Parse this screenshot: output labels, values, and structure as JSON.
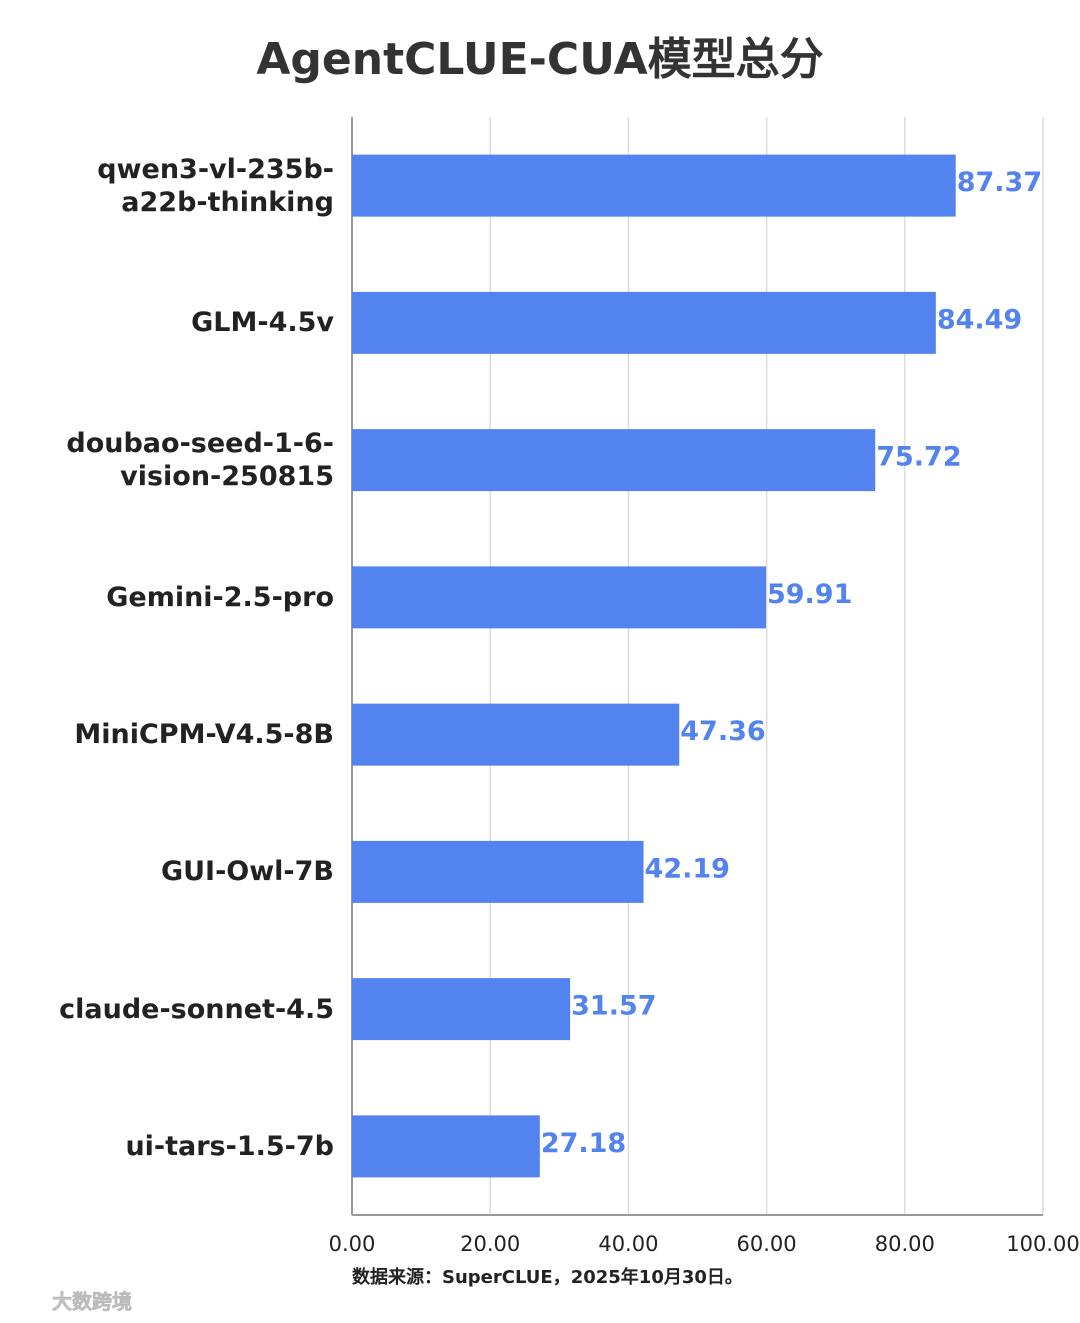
{
  "chart_data": {
    "type": "bar",
    "orientation": "horizontal",
    "title": "AgentCLUE-CUA模型总分",
    "categories": [
      "qwen3-vl-235b-a22b-thinking",
      "GLM-4.5v",
      "doubao-seed-1-6-vision-250815",
      "Gemini-2.5-pro",
      "MiniCPM-V4.5-8B",
      "GUI-Owl-7B",
      "claude-sonnet-4.5",
      "ui-tars-1.5-7b"
    ],
    "values": [
      87.37,
      84.49,
      75.72,
      59.91,
      47.36,
      42.19,
      31.57,
      27.18
    ],
    "color": "#5383ee",
    "xlim": [
      0,
      100
    ],
    "xticks": [
      {
        "value": 0,
        "label": "0.00"
      },
      {
        "value": 20,
        "label": "20.00"
      },
      {
        "value": 40,
        "label": "40.00"
      },
      {
        "value": 60,
        "label": "60.00"
      },
      {
        "value": 80,
        "label": "80.00"
      },
      {
        "value": 100,
        "label": "100.00"
      }
    ],
    "grid": true,
    "source": "数据来源：SuperCLUE，2025年10月30日。",
    "watermark": "大数跨境"
  }
}
